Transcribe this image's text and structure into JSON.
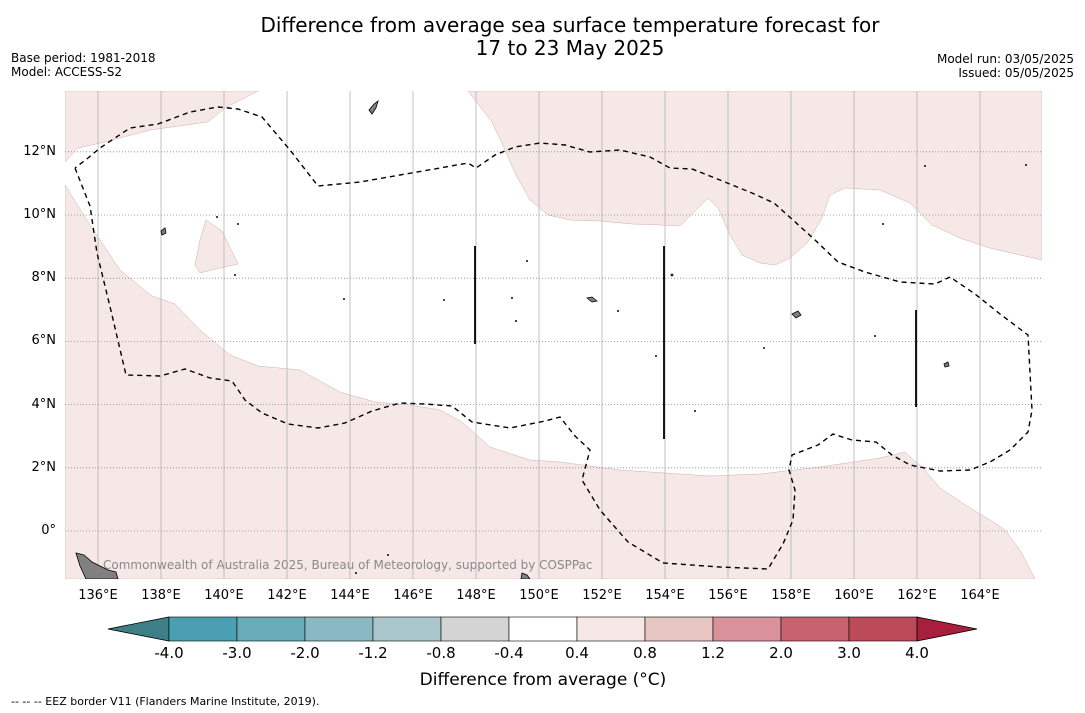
{
  "header": {
    "title_line1": "Difference from average sea surface temperature forecast for",
    "title_line2": "17 to 23 May 2025",
    "base_period": "Base period: 1981-2018",
    "model": "Model: ACCESS-S2",
    "model_run": "Model run: 03/05/2025",
    "issued": "Issued: 05/05/2025"
  },
  "map": {
    "lat_labels": [
      "12°N",
      "10°N",
      "8°N",
      "6°N",
      "4°N",
      "2°N",
      "0°"
    ],
    "lon_labels": [
      "136°E",
      "138°E",
      "140°E",
      "142°E",
      "144°E",
      "146°E",
      "148°E",
      "150°E",
      "152°E",
      "154°E",
      "156°E",
      "158°E",
      "160°E",
      "162°E",
      "164°E"
    ],
    "anomaly_fill_color": "#f5e8e6",
    "land_color": "#808080",
    "copyright": "Commonwealth of Australia 2025, Bureau of Meteorology, supported by COSPPac"
  },
  "colorbar": {
    "ticks": [
      "-4.0",
      "-3.0",
      "-2.0",
      "-1.2",
      "-0.8",
      "-0.4",
      "0.4",
      "0.8",
      "1.2",
      "2.0",
      "3.0",
      "4.0"
    ],
    "colors": [
      "#4a9fb2",
      "#6aabba",
      "#8ab9c4",
      "#aac8cc",
      "#d4d4d4",
      "#ffffff",
      "#f5e8e6",
      "#e8c6c1",
      "#d9919a",
      "#c9626f",
      "#bd4a58"
    ],
    "under_color": "#3d7f87",
    "over_color": "#a81e3c",
    "title": "Difference from average (°C)"
  },
  "footnote": "--  --  -- EEZ border V11 (Flanders Marine Institute, 2019)."
}
